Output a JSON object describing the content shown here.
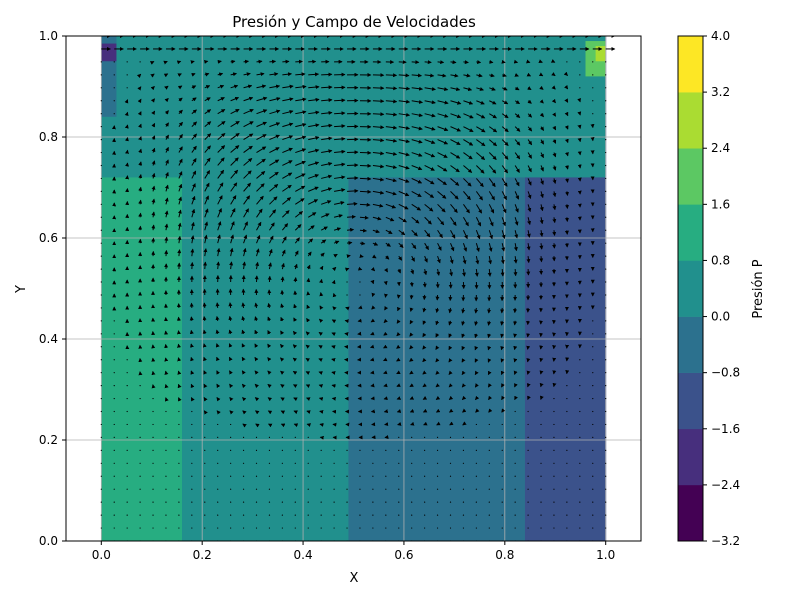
{
  "chart_data": {
    "type": "heatmap",
    "title": "Presión y Campo de Velocidades",
    "xlabel": "X",
    "ylabel": "Y",
    "xlim": [
      -0.07,
      1.07
    ],
    "ylim": [
      0.0,
      1.0
    ],
    "x_ticks": [
      "0.0",
      "0.2",
      "0.4",
      "0.6",
      "0.8",
      "1.0"
    ],
    "y_ticks": [
      "0.0",
      "0.2",
      "0.4",
      "0.6",
      "0.8",
      "1.0"
    ],
    "grid": true,
    "overlay": "quiver velocity field (lid-driven cavity flow)",
    "colorbar": {
      "label": "Presión P",
      "colormap": "viridis",
      "levels": [
        -3.2,
        -2.4,
        -1.6,
        -0.8,
        0.0,
        0.8,
        1.6,
        2.4,
        3.2,
        4.0
      ],
      "tick_labels": [
        "−3.2",
        "−2.4",
        "−1.6",
        "−0.8",
        "0.0",
        "0.8",
        "1.6",
        "2.4",
        "3.2",
        "4.0"
      ],
      "colors": [
        "#440154",
        "#472f7d",
        "#3b528b",
        "#2c718e",
        "#21908d",
        "#27ad81",
        "#5cc863",
        "#aadc32",
        "#fde725"
      ]
    },
    "pressure_regions": [
      {
        "x_from": 0.0,
        "x_to": 0.16,
        "level": 1.2
      },
      {
        "x_from": 0.16,
        "x_to": 0.49,
        "level": 0.4
      },
      {
        "x_from": 0.49,
        "x_to": 0.84,
        "level": -0.4
      },
      {
        "x_from": 0.84,
        "x_to": 1.0,
        "level": -1.2
      }
    ]
  }
}
